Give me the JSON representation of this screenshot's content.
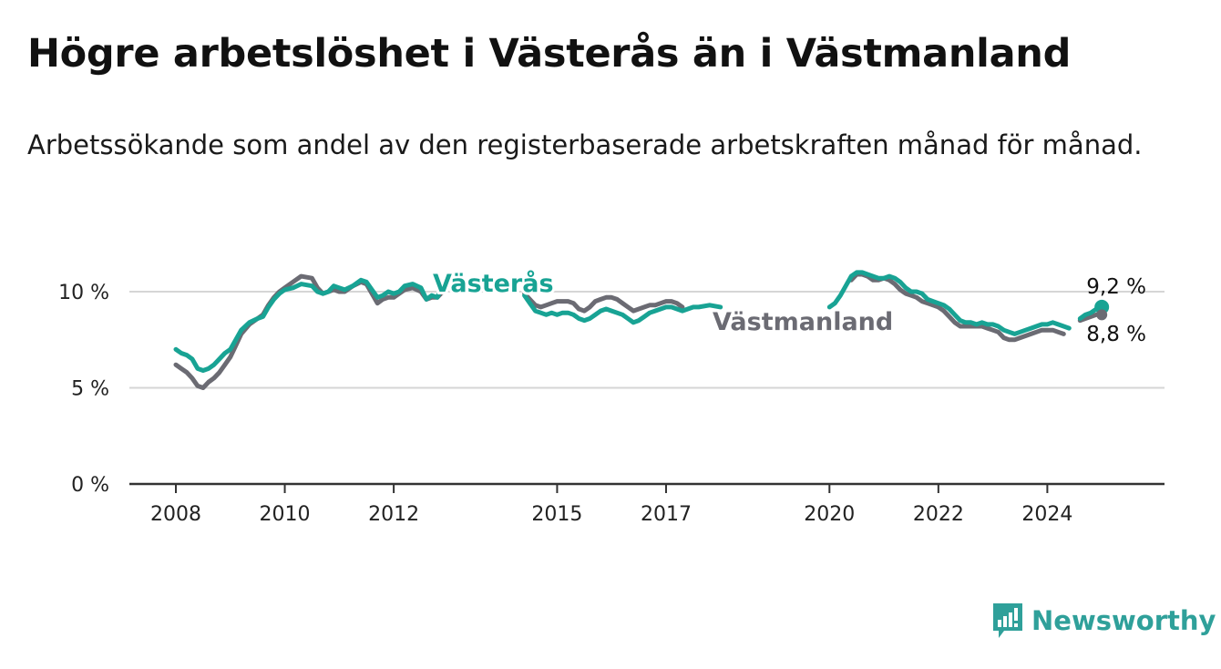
{
  "title": "Högre arbetslöshet i Västerås än i Västmanland",
  "subtitle": "Arbetssökande som andel av den registerbaserade arbetskraften månad för månad.",
  "brand": {
    "name": "Newsworthy",
    "color": "#2fa09a",
    "icon": "bar-chart-logo-icon"
  },
  "colors": {
    "vasteras": "#18a394",
    "vastmanland": "#6b6b73",
    "axis": "#333333",
    "grid": "#d6d6d6"
  },
  "chart_data": {
    "type": "line",
    "xlim": [
      2008.0,
      2025.75
    ],
    "ylim": [
      0,
      10
    ],
    "grid": true,
    "legend": "inline labels",
    "x_ticks": [
      {
        "value": 2008,
        "label": "2008"
      },
      {
        "value": 2010,
        "label": "2010"
      },
      {
        "value": 2012,
        "label": "2012"
      },
      {
        "value": 2015,
        "label": "2015"
      },
      {
        "value": 2017,
        "label": "2017"
      },
      {
        "value": 2020,
        "label": "2020"
      },
      {
        "value": 2022,
        "label": "2022"
      },
      {
        "value": 2024,
        "label": "2024"
      }
    ],
    "y_ticks": [
      {
        "value": 0,
        "label": "0 %"
      },
      {
        "value": 5,
        "label": "5 %"
      },
      {
        "value": 10,
        "label": "10 %"
      }
    ],
    "series": [
      {
        "name": "Västerås",
        "end_label": "9,2 %",
        "segments": [
          [
            [
              2008.0,
              7.0
            ],
            [
              2008.1,
              6.8
            ],
            [
              2008.2,
              6.7
            ],
            [
              2008.3,
              6.5
            ],
            [
              2008.4,
              6.0
            ],
            [
              2008.5,
              5.9
            ],
            [
              2008.6,
              6.0
            ],
            [
              2008.7,
              6.2
            ],
            [
              2008.8,
              6.5
            ],
            [
              2008.9,
              6.8
            ],
            [
              2009.0,
              7.0
            ],
            [
              2009.1,
              7.5
            ],
            [
              2009.2,
              8.0
            ],
            [
              2009.35,
              8.4
            ],
            [
              2009.5,
              8.6
            ],
            [
              2009.6,
              8.7
            ],
            [
              2009.7,
              9.2
            ],
            [
              2009.8,
              9.6
            ],
            [
              2009.9,
              9.9
            ],
            [
              2010.0,
              10.1
            ],
            [
              2010.15,
              10.2
            ],
            [
              2010.3,
              10.4
            ],
            [
              2010.5,
              10.3
            ],
            [
              2010.6,
              10.0
            ],
            [
              2010.7,
              9.9
            ],
            [
              2010.8,
              10.0
            ],
            [
              2010.9,
              10.3
            ],
            [
              2011.0,
              10.2
            ],
            [
              2011.1,
              10.1
            ],
            [
              2011.25,
              10.3
            ],
            [
              2011.4,
              10.6
            ],
            [
              2011.5,
              10.5
            ],
            [
              2011.6,
              10.1
            ],
            [
              2011.7,
              9.7
            ],
            [
              2011.8,
              9.8
            ],
            [
              2011.9,
              10.0
            ],
            [
              2012.0,
              9.9
            ],
            [
              2012.1,
              10.0
            ],
            [
              2012.2,
              10.3
            ],
            [
              2012.35,
              10.4
            ],
            [
              2012.5,
              10.2
            ],
            [
              2012.6,
              9.6
            ],
            [
              2012.7,
              9.8
            ],
            [
              2012.8,
              9.7
            ],
            [
              2012.9,
              10.3
            ]
          ],
          [
            [
              2014.4,
              9.8
            ],
            [
              2014.5,
              9.4
            ],
            [
              2014.6,
              9.0
            ],
            [
              2014.7,
              8.9
            ],
            [
              2014.8,
              8.8
            ],
            [
              2014.9,
              8.9
            ],
            [
              2015.0,
              8.8
            ],
            [
              2015.1,
              8.9
            ],
            [
              2015.2,
              8.9
            ],
            [
              2015.3,
              8.8
            ],
            [
              2015.4,
              8.6
            ],
            [
              2015.5,
              8.5
            ],
            [
              2015.6,
              8.6
            ],
            [
              2015.7,
              8.8
            ],
            [
              2015.8,
              9.0
            ],
            [
              2015.9,
              9.1
            ],
            [
              2016.0,
              9.0
            ],
            [
              2016.1,
              8.9
            ],
            [
              2016.2,
              8.8
            ],
            [
              2016.3,
              8.6
            ],
            [
              2016.4,
              8.4
            ],
            [
              2016.5,
              8.5
            ],
            [
              2016.6,
              8.7
            ],
            [
              2016.7,
              8.9
            ],
            [
              2016.8,
              9.0
            ],
            [
              2016.9,
              9.1
            ],
            [
              2017.0,
              9.2
            ],
            [
              2017.1,
              9.2
            ],
            [
              2017.2,
              9.1
            ],
            [
              2017.3,
              9.0
            ],
            [
              2017.4,
              9.1
            ],
            [
              2017.5,
              9.2
            ],
            [
              2017.6,
              9.2
            ],
            [
              2017.8,
              9.3
            ],
            [
              2018.0,
              9.2
            ]
          ],
          [
            [
              2020.0,
              9.2
            ],
            [
              2020.1,
              9.4
            ],
            [
              2020.2,
              9.8
            ],
            [
              2020.3,
              10.3
            ],
            [
              2020.4,
              10.8
            ],
            [
              2020.5,
              11.0
            ],
            [
              2020.6,
              11.0
            ],
            [
              2020.7,
              10.9
            ],
            [
              2020.8,
              10.8
            ],
            [
              2020.9,
              10.7
            ],
            [
              2021.0,
              10.7
            ],
            [
              2021.1,
              10.8
            ],
            [
              2021.2,
              10.7
            ],
            [
              2021.3,
              10.5
            ],
            [
              2021.4,
              10.2
            ],
            [
              2021.5,
              10.0
            ],
            [
              2021.6,
              10.0
            ],
            [
              2021.7,
              9.9
            ],
            [
              2021.8,
              9.6
            ],
            [
              2021.9,
              9.5
            ],
            [
              2022.0,
              9.4
            ],
            [
              2022.1,
              9.3
            ],
            [
              2022.2,
              9.1
            ],
            [
              2022.3,
              8.8
            ],
            [
              2022.4,
              8.5
            ],
            [
              2022.5,
              8.4
            ],
            [
              2022.6,
              8.4
            ],
            [
              2022.7,
              8.3
            ],
            [
              2022.8,
              8.4
            ],
            [
              2022.9,
              8.3
            ],
            [
              2023.0,
              8.3
            ],
            [
              2023.1,
              8.2
            ],
            [
              2023.2,
              8.0
            ],
            [
              2023.3,
              7.9
            ],
            [
              2023.4,
              7.8
            ],
            [
              2023.5,
              7.9
            ],
            [
              2023.6,
              8.0
            ],
            [
              2023.7,
              8.1
            ],
            [
              2023.8,
              8.2
            ],
            [
              2023.9,
              8.3
            ],
            [
              2024.0,
              8.3
            ],
            [
              2024.1,
              8.4
            ],
            [
              2024.2,
              8.3
            ],
            [
              2024.3,
              8.2
            ],
            [
              2024.4,
              8.1
            ]
          ],
          [
            [
              2024.6,
              8.6
            ],
            [
              2024.7,
              8.8
            ],
            [
              2024.8,
              8.9
            ],
            [
              2024.9,
              9.1
            ],
            [
              2025.0,
              9.2
            ]
          ]
        ]
      },
      {
        "name": "Västmanland",
        "end_label": "8,8 %",
        "segments": [
          [
            [
              2008.0,
              6.2
            ],
            [
              2008.1,
              6.0
            ],
            [
              2008.2,
              5.8
            ],
            [
              2008.3,
              5.5
            ],
            [
              2008.4,
              5.1
            ],
            [
              2008.5,
              5.0
            ],
            [
              2008.6,
              5.3
            ],
            [
              2008.7,
              5.5
            ],
            [
              2008.8,
              5.8
            ],
            [
              2008.9,
              6.2
            ],
            [
              2009.0,
              6.6
            ],
            [
              2009.1,
              7.2
            ],
            [
              2009.2,
              7.8
            ],
            [
              2009.35,
              8.3
            ],
            [
              2009.5,
              8.6
            ],
            [
              2009.6,
              8.8
            ],
            [
              2009.7,
              9.3
            ],
            [
              2009.8,
              9.7
            ],
            [
              2009.9,
              10.0
            ],
            [
              2010.0,
              10.2
            ],
            [
              2010.15,
              10.5
            ],
            [
              2010.3,
              10.8
            ],
            [
              2010.5,
              10.7
            ],
            [
              2010.6,
              10.2
            ],
            [
              2010.7,
              9.9
            ],
            [
              2010.8,
              10.0
            ],
            [
              2010.9,
              10.1
            ],
            [
              2011.0,
              10.0
            ],
            [
              2011.1,
              10.0
            ],
            [
              2011.25,
              10.3
            ],
            [
              2011.4,
              10.5
            ],
            [
              2011.5,
              10.4
            ],
            [
              2011.6,
              9.9
            ],
            [
              2011.7,
              9.4
            ],
            [
              2011.8,
              9.6
            ],
            [
              2011.9,
              9.7
            ],
            [
              2012.0,
              9.7
            ],
            [
              2012.1,
              9.9
            ],
            [
              2012.2,
              10.1
            ],
            [
              2012.35,
              10.2
            ],
            [
              2012.5,
              10.0
            ],
            [
              2012.6,
              9.6
            ],
            [
              2012.7,
              9.7
            ],
            [
              2012.8,
              9.7
            ],
            [
              2012.9,
              10.0
            ]
          ],
          [
            [
              2014.4,
              9.9
            ],
            [
              2014.5,
              9.6
            ],
            [
              2014.6,
              9.3
            ],
            [
              2014.7,
              9.2
            ],
            [
              2014.8,
              9.3
            ],
            [
              2014.9,
              9.4
            ],
            [
              2015.0,
              9.5
            ],
            [
              2015.1,
              9.5
            ],
            [
              2015.2,
              9.5
            ],
            [
              2015.3,
              9.4
            ],
            [
              2015.4,
              9.1
            ],
            [
              2015.5,
              9.0
            ],
            [
              2015.6,
              9.2
            ],
            [
              2015.7,
              9.5
            ],
            [
              2015.8,
              9.6
            ],
            [
              2015.9,
              9.7
            ],
            [
              2016.0,
              9.7
            ],
            [
              2016.1,
              9.6
            ],
            [
              2016.2,
              9.4
            ],
            [
              2016.3,
              9.2
            ],
            [
              2016.4,
              9.0
            ],
            [
              2016.5,
              9.1
            ],
            [
              2016.6,
              9.2
            ],
            [
              2016.7,
              9.3
            ],
            [
              2016.8,
              9.3
            ],
            [
              2016.9,
              9.4
            ],
            [
              2017.0,
              9.5
            ],
            [
              2017.1,
              9.5
            ],
            [
              2017.2,
              9.4
            ],
            [
              2017.3,
              9.2
            ]
          ],
          [
            [
              2020.4,
              10.6
            ],
            [
              2020.5,
              10.9
            ],
            [
              2020.6,
              10.9
            ],
            [
              2020.7,
              10.8
            ],
            [
              2020.8,
              10.6
            ],
            [
              2020.9,
              10.6
            ],
            [
              2021.0,
              10.7
            ],
            [
              2021.1,
              10.6
            ],
            [
              2021.2,
              10.4
            ],
            [
              2021.3,
              10.1
            ],
            [
              2021.4,
              9.9
            ],
            [
              2021.5,
              9.8
            ],
            [
              2021.6,
              9.7
            ],
            [
              2021.7,
              9.5
            ],
            [
              2021.8,
              9.4
            ],
            [
              2021.9,
              9.3
            ],
            [
              2022.0,
              9.2
            ],
            [
              2022.1,
              9.0
            ],
            [
              2022.2,
              8.7
            ],
            [
              2022.3,
              8.4
            ],
            [
              2022.4,
              8.2
            ],
            [
              2022.5,
              8.2
            ],
            [
              2022.6,
              8.2
            ],
            [
              2022.7,
              8.2
            ],
            [
              2022.8,
              8.2
            ],
            [
              2022.9,
              8.1
            ],
            [
              2023.0,
              8.0
            ],
            [
              2023.1,
              7.9
            ],
            [
              2023.2,
              7.6
            ],
            [
              2023.3,
              7.5
            ],
            [
              2023.4,
              7.5
            ],
            [
              2023.5,
              7.6
            ],
            [
              2023.6,
              7.7
            ],
            [
              2023.7,
              7.8
            ],
            [
              2023.8,
              7.9
            ],
            [
              2023.9,
              8.0
            ],
            [
              2024.0,
              8.0
            ],
            [
              2024.1,
              8.0
            ],
            [
              2024.2,
              7.9
            ],
            [
              2024.3,
              7.8
            ]
          ],
          [
            [
              2024.6,
              8.5
            ],
            [
              2024.7,
              8.6
            ],
            [
              2024.8,
              8.7
            ],
            [
              2024.9,
              8.8
            ],
            [
              2025.0,
              8.8
            ]
          ]
        ]
      }
    ]
  }
}
